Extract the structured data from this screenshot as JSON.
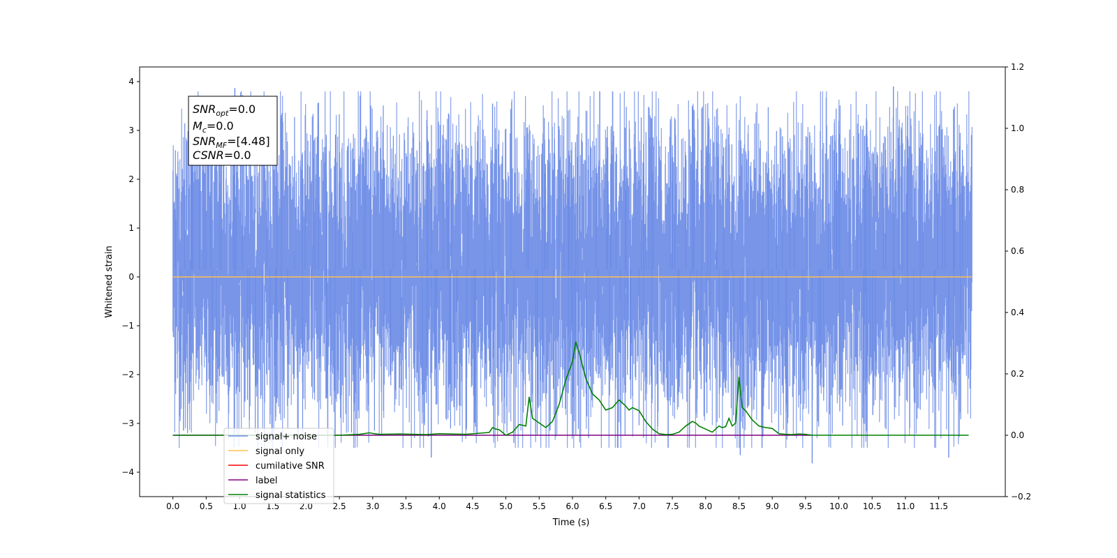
{
  "chart_data": {
    "type": "line",
    "xlabel": "Time (s)",
    "ylabel": "Whitened strain",
    "xlim": [
      -0.5,
      12.5
    ],
    "ylim": [
      -4.5,
      4.3
    ],
    "ylim_right": [
      -0.2,
      1.2
    ],
    "x_ticks": [
      "0.0",
      "0.5",
      "1.0",
      "1.5",
      "2.0",
      "2.5",
      "3.0",
      "3.5",
      "4.0",
      "4.5",
      "5.0",
      "5.5",
      "6.0",
      "6.5",
      "7.0",
      "7.5",
      "8.0",
      "8.5",
      "9.0",
      "9.5",
      "10.0",
      "10.5",
      "11.0",
      "11.5"
    ],
    "y_ticks_left": [
      "4",
      "3",
      "2",
      "1",
      "0",
      "−1",
      "−2",
      "−3",
      "−4"
    ],
    "y_ticks_right": [
      "1.2",
      "1.0",
      "0.8",
      "0.6",
      "0.4",
      "0.2",
      "0.0",
      "−0.2"
    ],
    "grid": false,
    "legend_position": "lower-left",
    "legend": [
      {
        "label": "signal+ noise",
        "color": "#6c8ce6"
      },
      {
        "label": "signal only",
        "color": "#ffc04d"
      },
      {
        "label": "cumilative SNR",
        "color": "#ff0000"
      },
      {
        "label": "label",
        "color": "#800080"
      },
      {
        "label": "signal statistics",
        "color": "#008000"
      }
    ],
    "annotation": {
      "snr_opt": "=0.0",
      "mc": "=0.0",
      "snr_mf": "=[4.48]",
      "csnr": "=0.0"
    },
    "series": [
      {
        "name": "signal+ noise",
        "axis": "left",
        "style": "noise",
        "x_range": [
          0.0,
          12.0
        ],
        "typical_range": [
          -2.0,
          2.3
        ],
        "extremes": [
          {
            "x": 0.93,
            "y": 3.87
          },
          {
            "x": 10.82,
            "y": 3.9
          },
          {
            "x": 4.8,
            "y": 3.55
          },
          {
            "x": 7.8,
            "y": 3.5
          },
          {
            "x": 3.88,
            "y": -3.7
          },
          {
            "x": 9.6,
            "y": -3.82
          },
          {
            "x": 11.65,
            "y": -3.7
          },
          {
            "x": 8.52,
            "y": -3.65
          },
          {
            "x": 5.12,
            "y": -3.4
          },
          {
            "x": 0.16,
            "y": -3.15
          },
          {
            "x": 6.0,
            "y": -3.25
          }
        ]
      },
      {
        "name": "signal only",
        "axis": "left",
        "x": [
          0.0,
          12.0
        ],
        "y": [
          0.0,
          0.0
        ]
      },
      {
        "name": "label",
        "axis": "right",
        "x": [
          0.0,
          9.6
        ],
        "y": [
          0.0,
          0.0
        ]
      },
      {
        "name": "signal statistics",
        "axis": "right",
        "x": [
          0.0,
          2.5,
          2.8,
          2.95,
          3.0,
          3.1,
          3.4,
          3.8,
          4.0,
          4.4,
          4.75,
          4.8,
          4.85,
          4.9,
          5.0,
          5.1,
          5.2,
          5.3,
          5.35,
          5.4,
          5.5,
          5.6,
          5.7,
          5.8,
          5.9,
          6.0,
          6.05,
          6.1,
          6.2,
          6.3,
          6.4,
          6.5,
          6.6,
          6.7,
          6.8,
          6.85,
          6.9,
          7.0,
          7.1,
          7.2,
          7.3,
          7.4,
          7.5,
          7.6,
          7.7,
          7.8,
          7.85,
          7.9,
          8.0,
          8.1,
          8.2,
          8.25,
          8.3,
          8.35,
          8.4,
          8.45,
          8.5,
          8.55,
          8.6,
          8.7,
          8.8,
          8.9,
          9.0,
          9.1,
          9.2,
          9.3,
          9.4,
          9.5,
          9.6,
          11.0,
          11.95
        ],
        "y": [
          0.0,
          0.0,
          0.003,
          0.008,
          0.006,
          0.003,
          0.004,
          0.002,
          0.005,
          0.003,
          0.009,
          0.025,
          0.02,
          0.018,
          0.0,
          0.01,
          0.035,
          0.03,
          0.125,
          0.055,
          0.04,
          0.025,
          0.045,
          0.1,
          0.18,
          0.24,
          0.305,
          0.27,
          0.185,
          0.135,
          0.115,
          0.082,
          0.09,
          0.115,
          0.095,
          0.082,
          0.09,
          0.08,
          0.045,
          0.02,
          0.005,
          0.002,
          0.003,
          0.01,
          0.03,
          0.045,
          0.04,
          0.03,
          0.02,
          0.01,
          0.03,
          0.025,
          0.028,
          0.055,
          0.03,
          0.04,
          0.19,
          0.09,
          0.08,
          0.05,
          0.03,
          0.025,
          0.022,
          0.005,
          0.003,
          0.002,
          0.004,
          0.003,
          0.0,
          0.0,
          0.0
        ]
      }
    ]
  }
}
